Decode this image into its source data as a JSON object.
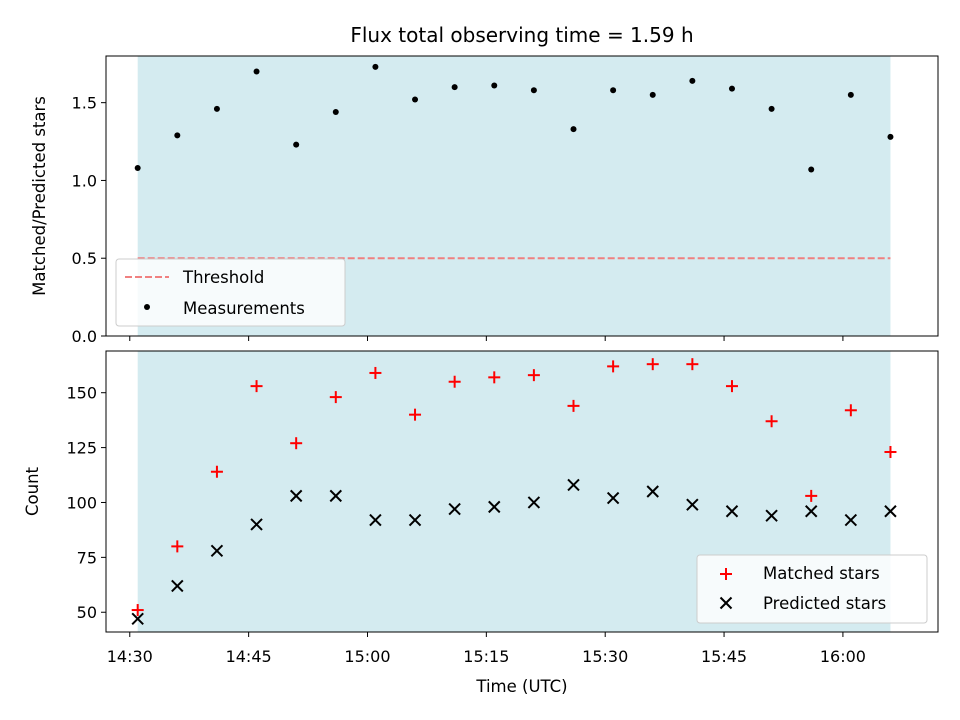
{
  "chart_data": [
    {
      "type": "scatter",
      "title": "Flux total observing time = 1.59 h",
      "ylabel": "Matched/Predicted stars",
      "xlabel": "",
      "xlim": [
        "14:27",
        "16:12"
      ],
      "ylim": [
        0,
        1.8
      ],
      "yticks": [
        0.0,
        0.5,
        1.0,
        1.5
      ],
      "ytick_labels": [
        "0.0",
        "0.5",
        "1.0",
        "1.5"
      ],
      "shaded_span": [
        "14:31",
        "16:06"
      ],
      "shaded_color": "#d4ebf0",
      "x": [
        "14:31",
        "14:36",
        "14:41",
        "14:46",
        "14:51",
        "14:56",
        "15:01",
        "15:06",
        "15:11",
        "15:16",
        "15:21",
        "15:26",
        "15:31",
        "15:36",
        "15:41",
        "15:46",
        "15:51",
        "15:56",
        "16:01",
        "16:06"
      ],
      "series": [
        {
          "name": "Threshold",
          "style": "dashed-line",
          "color": "#f08080",
          "x": [
            "14:31",
            "16:06"
          ],
          "values": [
            0.5,
            0.5
          ]
        },
        {
          "name": "Measurements",
          "style": "dot",
          "color": "#000000",
          "values": [
            1.08,
            1.29,
            1.46,
            1.7,
            1.23,
            1.44,
            1.73,
            1.52,
            1.6,
            1.61,
            1.58,
            1.33,
            1.58,
            1.55,
            1.64,
            1.59,
            1.46,
            1.07,
            1.55,
            1.28
          ]
        }
      ],
      "legend_location": "lower-left",
      "grid": false
    },
    {
      "type": "scatter",
      "title": "",
      "ylabel": "Count",
      "xlabel": "Time (UTC)",
      "xlim": [
        "14:27",
        "16:12"
      ],
      "ylim": [
        41,
        169
      ],
      "yticks": [
        50,
        75,
        100,
        125,
        150
      ],
      "ytick_labels": [
        "50",
        "75",
        "100",
        "125",
        "150"
      ],
      "xticks": [
        "14:30",
        "14:45",
        "15:00",
        "15:15",
        "15:30",
        "15:45",
        "16:00"
      ],
      "xtick_labels": [
        "14:30",
        "14:45",
        "15:00",
        "15:15",
        "15:30",
        "15:45",
        "16:00"
      ],
      "shaded_span": [
        "14:31",
        "16:06"
      ],
      "shaded_color": "#d4ebf0",
      "x": [
        "14:31",
        "14:36",
        "14:41",
        "14:46",
        "14:51",
        "14:56",
        "15:01",
        "15:06",
        "15:11",
        "15:16",
        "15:21",
        "15:26",
        "15:31",
        "15:36",
        "15:41",
        "15:46",
        "15:51",
        "15:56",
        "16:01",
        "16:06"
      ],
      "series": [
        {
          "name": "Matched stars",
          "style": "plus",
          "color": "#ff0000",
          "values": [
            51,
            80,
            114,
            153,
            127,
            148,
            159,
            140,
            155,
            157,
            158,
            144,
            162,
            163,
            163,
            153,
            137,
            103,
            142,
            123
          ]
        },
        {
          "name": "Predicted stars",
          "style": "x",
          "color": "#000000",
          "values": [
            47,
            62,
            78,
            90,
            103,
            103,
            92,
            92,
            97,
            98,
            100,
            108,
            102,
            105,
            99,
            96,
            94,
            96,
            92,
            96
          ]
        }
      ],
      "legend_location": "lower-right",
      "grid": false
    }
  ]
}
